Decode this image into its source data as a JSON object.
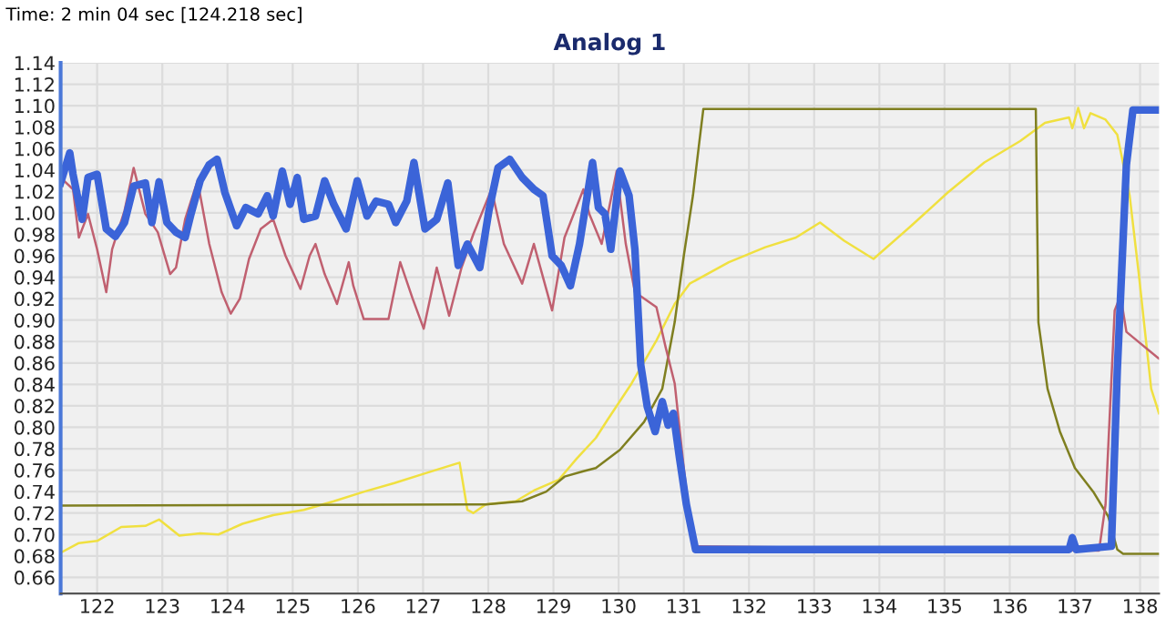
{
  "chart_data": {
    "type": "line",
    "title": "Analog 1",
    "annotations": [
      "Time: 2 min 04 sec [124.218 sec]"
    ],
    "xlim": [
      121.44,
      138.29
    ],
    "ylim": [
      0.645,
      1.14
    ],
    "xticks": [
      122,
      123,
      124,
      125,
      126,
      127,
      128,
      129,
      130,
      131,
      132,
      133,
      134,
      135,
      136,
      137,
      138
    ],
    "yticks": [
      {
        "value": 0.66,
        "label": "0.66"
      },
      {
        "value": 0.68,
        "label": "0.68"
      },
      {
        "value": 0.7,
        "label": "0.70"
      },
      {
        "value": 0.72,
        "label": "0.72"
      },
      {
        "value": 0.74,
        "label": "0.74"
      },
      {
        "value": 0.76,
        "label": "0.76"
      },
      {
        "value": 0.78,
        "label": "0.78"
      },
      {
        "value": 0.8,
        "label": "0.80"
      },
      {
        "value": 0.82,
        "label": "0.82"
      },
      {
        "value": 0.84,
        "label": "0.84"
      },
      {
        "value": 0.86,
        "label": "0.86"
      },
      {
        "value": 0.88,
        "label": "0.88"
      },
      {
        "value": 0.9,
        "label": "0.90"
      },
      {
        "value": 0.92,
        "label": "0.92"
      },
      {
        "value": 0.94,
        "label": "0.94"
      },
      {
        "value": 0.96,
        "label": "0.96"
      },
      {
        "value": 0.98,
        "label": "0.98"
      },
      {
        "value": 1.0,
        "label": "1.00"
      },
      {
        "value": 1.02,
        "label": "1.02"
      },
      {
        "value": 1.04,
        "label": "1.04"
      },
      {
        "value": 1.06,
        "label": "1.06"
      },
      {
        "value": 1.08,
        "label": "1.08"
      },
      {
        "value": 1.1,
        "label": "1.10"
      },
      {
        "value": 1.12,
        "label": "1.12"
      },
      {
        "value": 1.14,
        "label": "1.14"
      }
    ],
    "grid": true,
    "legend": false,
    "marker": "none",
    "line_style": "solid",
    "series": [
      {
        "color": "#f0e040",
        "x": [
          121.44,
          121.72,
          122.0,
          122.37,
          122.74,
          122.95,
          123.26,
          123.58,
          123.86,
          124.23,
          124.7,
          125.17,
          125.63,
          126.1,
          126.56,
          127.03,
          127.56,
          127.68,
          127.77,
          127.96,
          128.42,
          128.7,
          129.08,
          129.36,
          129.65,
          129.83,
          130.2,
          130.58,
          130.86,
          131.09,
          131.69,
          132.25,
          132.72,
          133.09,
          133.46,
          133.91,
          134.49,
          135.05,
          135.61,
          136.16,
          136.54,
          136.91,
          136.96,
          137.05,
          137.14,
          137.24,
          137.47,
          137.65,
          137.84,
          137.98,
          138.17,
          138.29
        ],
        "values": [
          0.683,
          0.692,
          0.694,
          0.707,
          0.708,
          0.714,
          0.699,
          0.701,
          0.7,
          0.71,
          0.718,
          0.723,
          0.731,
          0.74,
          0.748,
          0.757,
          0.767,
          0.723,
          0.72,
          0.728,
          0.731,
          0.741,
          0.751,
          0.771,
          0.79,
          0.807,
          0.841,
          0.881,
          0.915,
          0.934,
          0.954,
          0.968,
          0.977,
          0.991,
          0.974,
          0.957,
          0.988,
          1.019,
          1.047,
          1.067,
          1.084,
          1.089,
          1.079,
          1.098,
          1.079,
          1.093,
          1.087,
          1.073,
          1.016,
          0.943,
          0.836,
          0.813
        ]
      },
      {
        "color": "#7f7f20",
        "x": [
          121.44,
          127.96,
          128.52,
          128.89,
          129.17,
          129.46,
          129.65,
          130.02,
          130.39,
          130.67,
          130.86,
          131.0,
          131.14,
          131.23,
          131.3,
          136.4,
          136.44,
          136.58,
          136.77,
          137.0,
          137.28,
          137.51,
          137.65,
          137.74,
          138.29
        ],
        "values": [
          0.727,
          0.728,
          0.731,
          0.74,
          0.754,
          0.759,
          0.762,
          0.779,
          0.805,
          0.836,
          0.898,
          0.96,
          1.016,
          1.062,
          1.097,
          1.097,
          0.898,
          0.836,
          0.796,
          0.762,
          0.74,
          0.717,
          0.686,
          0.682,
          0.682
        ]
      },
      {
        "color": "#c06070",
        "x": [
          121.44,
          121.63,
          121.72,
          121.86,
          122.0,
          122.14,
          122.23,
          122.42,
          122.56,
          122.74,
          122.93,
          123.12,
          123.21,
          123.35,
          123.54,
          123.72,
          123.91,
          124.05,
          124.19,
          124.33,
          124.51,
          124.7,
          124.89,
          125.12,
          125.26,
          125.35,
          125.49,
          125.68,
          125.86,
          125.93,
          126.09,
          126.28,
          126.47,
          126.65,
          126.84,
          127.01,
          127.21,
          127.4,
          127.59,
          127.77,
          128.05,
          128.24,
          128.52,
          128.7,
          128.98,
          129.17,
          129.46,
          129.55,
          129.74,
          129.97,
          130.11,
          130.25,
          130.58,
          130.72,
          130.86,
          131.0,
          131.14,
          137.37,
          137.47,
          137.61,
          137.7,
          137.79,
          138.29
        ],
        "values": [
          1.033,
          1.022,
          0.977,
          0.999,
          0.966,
          0.926,
          0.966,
          1.002,
          1.042,
          0.999,
          0.982,
          0.943,
          0.949,
          0.994,
          1.03,
          0.971,
          0.926,
          0.906,
          0.92,
          0.957,
          0.985,
          0.994,
          0.96,
          0.929,
          0.96,
          0.971,
          0.943,
          0.915,
          0.954,
          0.932,
          0.901,
          0.901,
          0.901,
          0.954,
          0.92,
          0.892,
          0.949,
          0.904,
          0.949,
          0.98,
          1.022,
          0.971,
          0.934,
          0.971,
          0.909,
          0.977,
          1.022,
          0.999,
          0.971,
          1.039,
          0.971,
          0.926,
          0.912,
          0.875,
          0.841,
          0.762,
          0.689,
          0.685,
          0.728,
          0.909,
          0.923,
          0.889,
          0.864
        ]
      },
      {
        "color": "#3b64d8",
        "x": [
          121.44,
          121.58,
          121.63,
          121.77,
          121.86,
          122.0,
          122.14,
          122.28,
          122.42,
          122.56,
          122.74,
          122.84,
          122.95,
          123.07,
          123.21,
          123.35,
          123.44,
          123.58,
          123.72,
          123.84,
          123.96,
          124.14,
          124.28,
          124.47,
          124.61,
          124.7,
          124.84,
          124.96,
          125.07,
          125.17,
          125.35,
          125.49,
          125.63,
          125.82,
          125.99,
          126.14,
          126.28,
          126.47,
          126.58,
          126.75,
          126.86,
          127.03,
          127.21,
          127.38,
          127.54,
          127.68,
          127.87,
          128.01,
          128.15,
          128.33,
          128.52,
          128.7,
          128.84,
          128.98,
          129.12,
          129.26,
          129.4,
          129.6,
          129.69,
          129.79,
          129.88,
          130.02,
          130.16,
          130.25,
          130.34,
          130.44,
          130.56,
          130.67,
          130.76,
          130.84,
          130.93,
          131.04,
          131.18,
          132.25,
          134.67,
          136.91,
          136.96,
          137.02,
          137.56,
          137.65,
          137.79,
          137.89,
          138.29
        ],
        "values": [
          1.028,
          1.056,
          1.036,
          0.994,
          1.033,
          1.036,
          0.985,
          0.978,
          0.991,
          1.025,
          1.028,
          0.991,
          1.029,
          0.991,
          0.982,
          0.977,
          0.999,
          1.03,
          1.045,
          1.05,
          1.019,
          0.988,
          1.005,
          0.999,
          1.016,
          0.997,
          1.039,
          1.008,
          1.033,
          0.994,
          0.997,
          1.03,
          1.008,
          0.985,
          1.03,
          0.997,
          1.011,
          1.008,
          0.991,
          1.011,
          1.047,
          0.985,
          0.994,
          1.028,
          0.951,
          0.971,
          0.949,
          1.002,
          1.042,
          1.05,
          1.033,
          1.022,
          1.016,
          0.96,
          0.951,
          0.932,
          0.971,
          1.047,
          1.005,
          0.999,
          0.966,
          1.039,
          1.016,
          0.966,
          0.858,
          0.819,
          0.796,
          0.824,
          0.802,
          0.813,
          0.773,
          0.728,
          0.686,
          0.686,
          0.686,
          0.686,
          0.697,
          0.686,
          0.689,
          0.853,
          1.045,
          1.096,
          1.096
        ]
      }
    ]
  }
}
